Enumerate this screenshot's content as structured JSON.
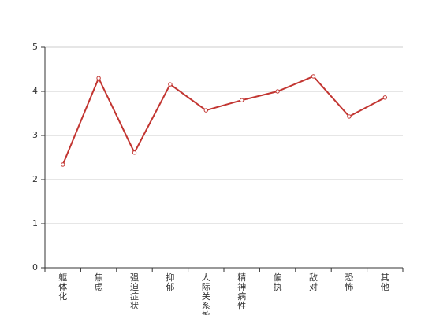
{
  "chart_data": {
    "type": "line",
    "categories": [
      "躯体化",
      "焦虑",
      "强迫症状",
      "抑郁",
      "人际关系敏感",
      "精神病性",
      "偏执",
      "敌对",
      "恐怖",
      "其他"
    ],
    "series": [
      {
        "color": "#c23531",
        "values": [
          2.34,
          4.3,
          2.61,
          4.16,
          3.57,
          3.8,
          4.0,
          4.34,
          3.43,
          3.86
        ]
      }
    ],
    "ylim": [
      0,
      5
    ],
    "yticks": [
      0,
      1,
      2,
      3,
      4,
      5
    ],
    "grid": true
  }
}
